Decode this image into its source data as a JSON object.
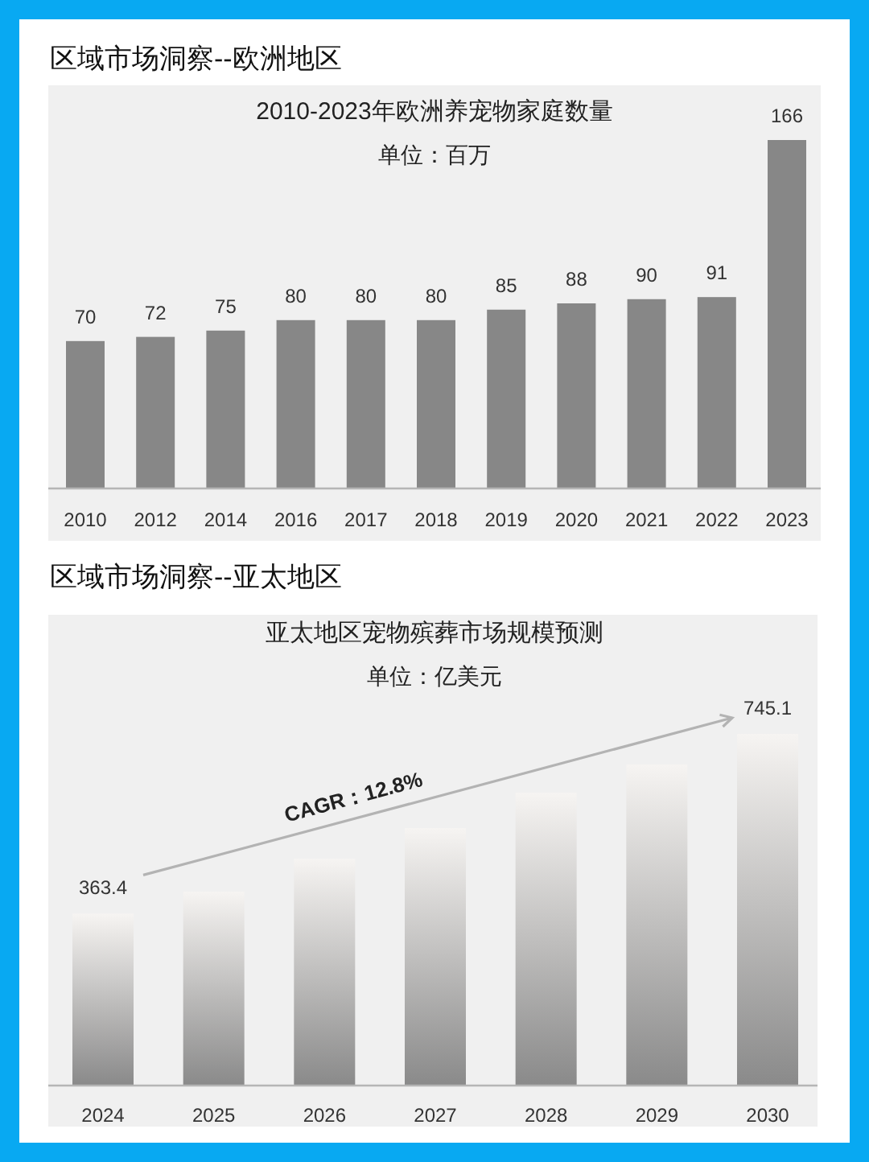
{
  "chart_data": [
    {
      "type": "bar",
      "title": "2010-2023年欧洲养宠物家庭数量",
      "subtitle": "单位：百万",
      "annotations": [
        "区域市场洞察--欧洲地区"
      ],
      "categories": [
        "2010",
        "2012",
        "2014",
        "2016",
        "2017",
        "2018",
        "2019",
        "2020",
        "2021",
        "2022",
        "2023"
      ],
      "values": [
        70,
        72,
        75,
        80,
        80,
        80,
        85,
        88,
        90,
        91,
        166
      ],
      "color": "#878787",
      "data_labels": true
    },
    {
      "type": "bar",
      "title": "亚太地区宠物殡葬市场规模预测",
      "subtitle": "单位：亿美元",
      "annotations": [
        "区域市场洞察--亚太地区",
        "CAGR：12.8%"
      ],
      "categories": [
        "2024",
        "2025",
        "2026",
        "2027",
        "2028",
        "2029",
        "2030"
      ],
      "values": [
        363.4,
        410,
        480,
        545,
        620,
        680,
        745.1
      ],
      "color": "#8a8a8a",
      "value_labels": [
        "363.4",
        null,
        null,
        null,
        null,
        null,
        "745.1"
      ]
    }
  ]
}
